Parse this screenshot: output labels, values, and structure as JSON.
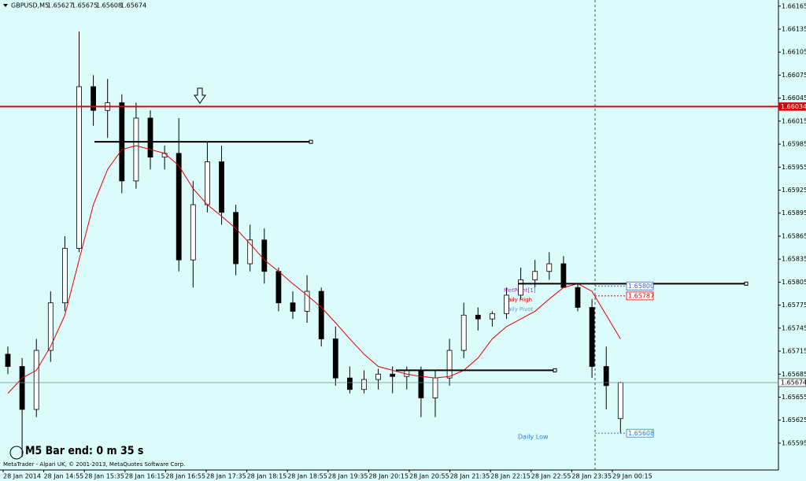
{
  "chart_data": {
    "type": "candlestick",
    "symbol": "GBPUSD,M5",
    "bull_color": "#ffffff",
    "bear_color": "#000000",
    "candles": {
      "open": [
        1.65711,
        1.65695,
        1.65639,
        1.65716,
        1.65778,
        1.65849,
        1.6606,
        1.66029,
        1.66039,
        1.65937,
        1.66019,
        1.65968,
        1.65973,
        1.65834,
        1.65906,
        1.65962,
        1.65896,
        1.65829,
        1.6586,
        1.65819,
        1.65778,
        1.65767,
        1.65793,
        1.65731,
        1.6568,
        1.65665,
        1.65678,
        1.65685,
        1.65682,
        1.6569,
        1.65654,
        1.6568,
        1.65716,
        1.65762,
        1.65757,
        1.65764,
        1.65788,
        1.65808,
        1.65819,
        1.65829,
        1.65798,
        1.65772,
        1.65695,
        1.65627
      ],
      "high": [
        1.65721,
        1.65706,
        1.65731,
        1.65793,
        1.65865,
        1.66132,
        1.66075,
        1.6607,
        1.6605,
        1.66039,
        1.66029,
        1.65983,
        1.66019,
        1.65937,
        1.65988,
        1.65983,
        1.65906,
        1.6588,
        1.65875,
        1.65824,
        1.65793,
        1.65814,
        1.65798,
        1.65747,
        1.65695,
        1.6569,
        1.65692,
        1.65695,
        1.65695,
        1.65695,
        1.6569,
        1.65731,
        1.65778,
        1.65772,
        1.65767,
        1.65798,
        1.65824,
        1.65834,
        1.65844,
        1.65839,
        1.65803,
        1.65783,
        1.65721,
        1.65675
      ],
      "low": [
        1.65685,
        1.65577,
        1.65629,
        1.65701,
        1.65767,
        1.65844,
        1.66009,
        1.65993,
        1.65921,
        1.65927,
        1.65952,
        1.65952,
        1.65819,
        1.65798,
        1.65896,
        1.6588,
        1.65814,
        1.65819,
        1.65803,
        1.65767,
        1.65757,
        1.65752,
        1.65721,
        1.6567,
        1.6566,
        1.6566,
        1.65665,
        1.6566,
        1.65665,
        1.65629,
        1.65629,
        1.6567,
        1.65706,
        1.65742,
        1.65747,
        1.65757,
        1.65783,
        1.65798,
        1.65808,
        1.65798,
        1.65767,
        1.6568,
        1.65639,
        1.65608
      ],
      "close": [
        1.65695,
        1.65639,
        1.65716,
        1.65778,
        1.65849,
        1.6606,
        1.66029,
        1.66039,
        1.65937,
        1.66019,
        1.65968,
        1.65973,
        1.65834,
        1.65906,
        1.65962,
        1.65896,
        1.65829,
        1.6586,
        1.65819,
        1.65778,
        1.65767,
        1.65793,
        1.65731,
        1.6568,
        1.65665,
        1.65678,
        1.65685,
        1.65682,
        1.6569,
        1.65654,
        1.6568,
        1.65716,
        1.65762,
        1.65757,
        1.65764,
        1.65788,
        1.65808,
        1.65819,
        1.65829,
        1.65798,
        1.65772,
        1.65695,
        1.6567,
        1.65674
      ]
    },
    "ma": {
      "color": "#e00000",
      "values": [
        1.6566,
        1.6568,
        1.6569,
        1.65721,
        1.65762,
        1.65834,
        1.65906,
        1.65952,
        1.65978,
        1.65983,
        1.65978,
        1.65973,
        1.65957,
        1.65927,
        1.65906,
        1.65891,
        1.65875,
        1.65855,
        1.65834,
        1.65819,
        1.65803,
        1.65788,
        1.65772,
        1.65752,
        1.65731,
        1.65711,
        1.65695,
        1.6569,
        1.65685,
        1.65682,
        1.6568,
        1.65682,
        1.6569,
        1.65706,
        1.65731,
        1.65747,
        1.65757,
        1.65767,
        1.65783,
        1.65798,
        1.65803,
        1.65793,
        1.65762,
        1.65731
      ]
    },
    "ylim": [
      1.6556,
      1.66173
    ],
    "yticks": [
      1.66165,
      1.66135,
      1.66105,
      1.66075,
      1.66045,
      1.66015,
      1.65985,
      1.65955,
      1.65925,
      1.65895,
      1.65865,
      1.65835,
      1.65805,
      1.65775,
      1.65745,
      1.65715,
      1.65685,
      1.65655,
      1.65625,
      1.65595
    ],
    "xtick_labels": [
      "28 Jan 2014",
      "28 Jan 14:55",
      "28 Jan 15:35",
      "28 Jan 16:15",
      "28 Jan 16:55",
      "28 Jan 17:35",
      "28 Jan 18:15",
      "28 Jan 18:55",
      "28 Jan 19:35",
      "28 Jan 20:15",
      "28 Jan 20:55",
      "28 Jan 21:35",
      "28 Jan 22:15",
      "28 Jan 22:55",
      "28 Jan 23:35",
      "29 Jan 00:15"
    ],
    "price_lines": [
      {
        "value": 1.66034,
        "color": "#e00000"
      },
      {
        "value": 1.65674,
        "color": "#7a8a8a"
      }
    ],
    "level_lines": [
      1.65988,
      1.65803,
      1.6569
    ],
    "level_labels": [
      {
        "value": 1.658,
        "label": "1.65800",
        "color": "#4060c0"
      },
      {
        "value": 1.65787,
        "color": "#e00000"
      },
      {
        "value": 1.65608,
        "color": "#2080e0"
      }
    ],
    "annotations": [
      "MetPoint[1]",
      "Daily High",
      "Daily Pivot",
      "Daily Low"
    ],
    "bar_timer": "M5 Bar end: 0 m 35 s",
    "footer": "MetaTrader - Alpari UK, © 2001-2013, MetaQuotes Software Corp."
  }
}
